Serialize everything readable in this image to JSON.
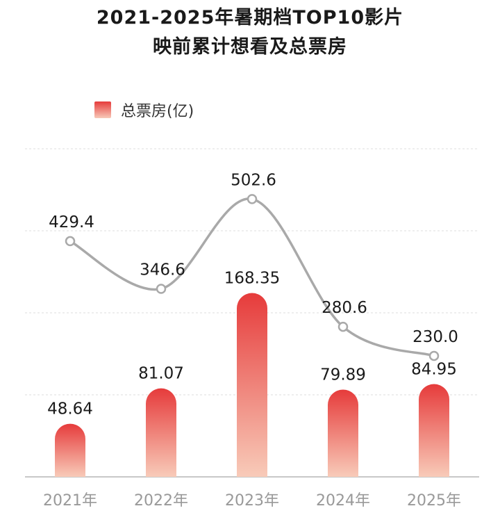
{
  "title_line1": "2021-2025年暑期档TOP10影片",
  "title_line2": "映前累计想看及总票房",
  "legend": {
    "bar_label": "总票房(亿)"
  },
  "colors": {
    "bar_top": "#e63b3b",
    "bar_bottom": "#f8cbb9",
    "line": "#a9a9a9",
    "grid": "#dddddd",
    "axis": "#c8c8c8",
    "tick": "#999999",
    "label": "#1a1a1a"
  },
  "chart_data": {
    "type": "bar",
    "categories": [
      "2021年",
      "2022年",
      "2023年",
      "2024年",
      "2025年"
    ],
    "series": [
      {
        "name": "总票房(亿)",
        "type": "bar",
        "values": [
          48.64,
          81.07,
          168.35,
          79.89,
          84.95
        ]
      },
      {
        "type": "line",
        "values": [
          429.4,
          346.6,
          502.6,
          280.6,
          230.0
        ]
      }
    ],
    "bar_labels": [
      "48.64",
      "81.07",
      "168.35",
      "79.89",
      "84.95"
    ],
    "line_labels": [
      "429.4",
      "346.6",
      "502.6",
      "280.6",
      "230.0"
    ],
    "grid": true,
    "legend_position": "top-left"
  }
}
